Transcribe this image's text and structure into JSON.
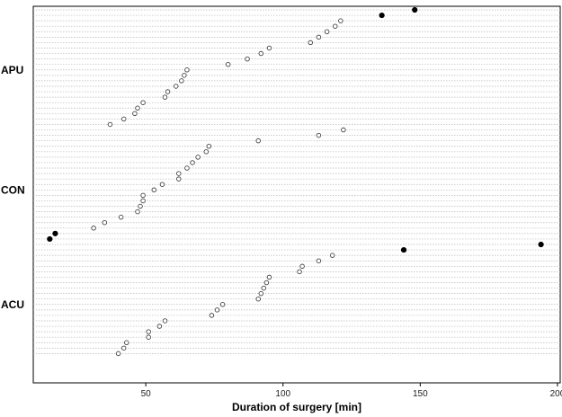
{
  "chart_data": {
    "type": "scatter",
    "xlabel": "Duration of surgery [min]",
    "xlim": [
      9,
      201
    ],
    "xticks": [
      50,
      100,
      150,
      200
    ],
    "grid": true,
    "groups": [
      {
        "label": "APU",
        "points": [
          {
            "x": 148,
            "filled": true
          },
          {
            "x": 136,
            "filled": true
          },
          {
            "x": 121,
            "filled": false
          },
          {
            "x": 119,
            "filled": false
          },
          {
            "x": 116,
            "filled": false
          },
          {
            "x": 113,
            "filled": false
          },
          {
            "x": 110,
            "filled": false
          },
          {
            "x": 95,
            "filled": false
          },
          {
            "x": 92,
            "filled": false
          },
          {
            "x": 87,
            "filled": false
          },
          {
            "x": 80,
            "filled": false
          },
          {
            "x": 65,
            "filled": false
          },
          {
            "x": 64,
            "filled": false
          },
          {
            "x": 63,
            "filled": false
          },
          {
            "x": 61,
            "filled": false
          },
          {
            "x": 58,
            "filled": false
          },
          {
            "x": 57,
            "filled": false
          },
          {
            "x": 49,
            "filled": false
          },
          {
            "x": 47,
            "filled": false
          },
          {
            "x": 46,
            "filled": false
          },
          {
            "x": 42,
            "filled": false
          },
          {
            "x": 37,
            "filled": false
          }
        ]
      },
      {
        "label": "CON",
        "points": [
          {
            "x": 122,
            "filled": false
          },
          {
            "x": 113,
            "filled": false
          },
          {
            "x": 91,
            "filled": false
          },
          {
            "x": 73,
            "filled": false
          },
          {
            "x": 72,
            "filled": false
          },
          {
            "x": 69,
            "filled": false
          },
          {
            "x": 67,
            "filled": false
          },
          {
            "x": 65,
            "filled": false
          },
          {
            "x": 62,
            "filled": false
          },
          {
            "x": 62,
            "filled": false
          },
          {
            "x": 56,
            "filled": false
          },
          {
            "x": 53,
            "filled": false
          },
          {
            "x": 49,
            "filled": false
          },
          {
            "x": 49,
            "filled": false
          },
          {
            "x": 48,
            "filled": false
          },
          {
            "x": 47,
            "filled": false
          },
          {
            "x": 41,
            "filled": false
          },
          {
            "x": 35,
            "filled": false
          },
          {
            "x": 31,
            "filled": false
          },
          {
            "x": 17,
            "filled": true
          },
          {
            "x": 15,
            "filled": true
          }
        ]
      },
      {
        "label": "ACU",
        "points": [
          {
            "x": 194,
            "filled": true
          },
          {
            "x": 144,
            "filled": true
          },
          {
            "x": 118,
            "filled": false
          },
          {
            "x": 113,
            "filled": false
          },
          {
            "x": 107,
            "filled": false
          },
          {
            "x": 106,
            "filled": false
          },
          {
            "x": 95,
            "filled": false
          },
          {
            "x": 94,
            "filled": false
          },
          {
            "x": 93,
            "filled": false
          },
          {
            "x": 92,
            "filled": false
          },
          {
            "x": 91,
            "filled": false
          },
          {
            "x": 78,
            "filled": false
          },
          {
            "x": 76,
            "filled": false
          },
          {
            "x": 74,
            "filled": false
          },
          {
            "x": 57,
            "filled": false
          },
          {
            "x": 55,
            "filled": false
          },
          {
            "x": 51,
            "filled": false
          },
          {
            "x": 51,
            "filled": false
          },
          {
            "x": 43,
            "filled": false
          },
          {
            "x": 42,
            "filled": false
          },
          {
            "x": 40,
            "filled": false
          }
        ]
      }
    ]
  }
}
